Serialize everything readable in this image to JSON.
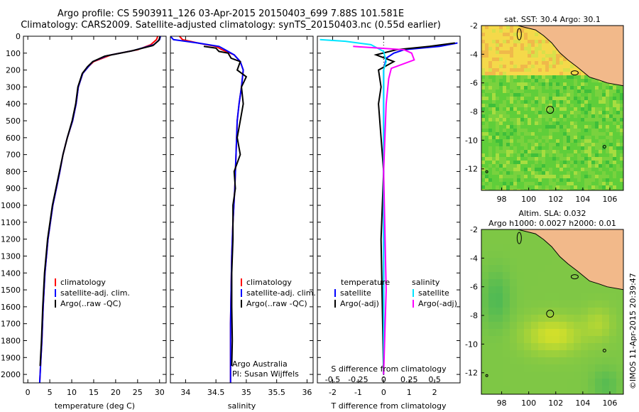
{
  "header": {
    "line1": "Argo profile: CS 5903911_126 03-Apr-2015 20150403_699 7.88S 101.581E",
    "line2": "Climatology: CARS2009. Satellite-adjusted climatology: synTS_20150403.nc (0.55d earlier)"
  },
  "colors": {
    "climatology": "#ff0000",
    "satellite": "#0000ff",
    "argo": "#000000",
    "satellite_s": "#00e5ff",
    "argo_s": "#ff00ff",
    "land": "#f2b98a"
  },
  "chart_data": [
    {
      "type": "line",
      "id": "temperature",
      "xlabel": "temperature (deg C)",
      "ylabel": "",
      "xlim": [
        -1,
        31.5
      ],
      "ylim": [
        2050,
        0
      ],
      "xticks": [
        0,
        5,
        10,
        15,
        20,
        25,
        30
      ],
      "yticks": [
        0,
        100,
        200,
        300,
        400,
        500,
        600,
        700,
        800,
        900,
        1000,
        1100,
        1200,
        1300,
        1400,
        1500,
        1600,
        1700,
        1800,
        1900,
        2000
      ],
      "legend": [
        "climatology",
        "satellite-adj. clim.",
        "Argo(..raw -QC)"
      ],
      "series": [
        {
          "name": "climatology",
          "color": "#ff0000",
          "x": [
            29.6,
            29.3,
            28.0,
            25.0,
            19.0,
            15.0,
            13.8,
            12.5,
            11.5,
            11.0,
            10.2,
            9.0,
            8.0,
            7.3,
            6.5,
            5.7,
            4.6,
            3.9,
            3.5,
            3.2,
            2.9,
            2.7
          ],
          "y": [
            0,
            20,
            50,
            80,
            110,
            150,
            180,
            220,
            300,
            400,
            500,
            600,
            700,
            800,
            900,
            1000,
            1200,
            1400,
            1600,
            1800,
            1950,
            2050
          ]
        },
        {
          "name": "satellite-adj. clim.",
          "color": "#0000ff",
          "x": [
            30.2,
            30.0,
            28.7,
            24.0,
            18.0,
            14.8,
            13.8,
            12.5,
            11.5,
            11.0,
            10.2,
            9.0,
            8.0,
            7.3,
            6.5,
            5.7,
            4.6,
            3.9,
            3.5,
            3.2,
            2.9,
            2.7
          ],
          "y": [
            0,
            20,
            50,
            85,
            115,
            150,
            180,
            220,
            300,
            400,
            500,
            600,
            700,
            800,
            900,
            1000,
            1200,
            1400,
            1600,
            1800,
            1950,
            2050
          ]
        },
        {
          "name": "Argo(..raw -QC)",
          "color": "#000000",
          "x": [
            30.1,
            29.8,
            28.5,
            23.5,
            17.5,
            14.8,
            13.6,
            12.4,
            11.4,
            10.9,
            10.1,
            9.0,
            8.0,
            7.2,
            6.4,
            5.6,
            4.5,
            3.8,
            3.4,
            3.1,
            2.8
          ],
          "y": [
            5,
            25,
            55,
            88,
            118,
            150,
            180,
            220,
            300,
            400,
            500,
            600,
            700,
            800,
            900,
            1000,
            1200,
            1400,
            1600,
            1800,
            1950
          ]
        }
      ]
    },
    {
      "type": "line",
      "id": "salinity",
      "xlabel": "salinity",
      "ylabel": "",
      "xlim": [
        33.75,
        36.1
      ],
      "ylim": [
        2050,
        0
      ],
      "xticks": [
        34,
        34.5,
        35,
        35.5,
        36
      ],
      "legend": [
        "climatology",
        "satellite-adj. clim.",
        "Argo(..raw -QC)"
      ],
      "annotation": [
        "Argo Australia",
        "PI: Susan Wijffels"
      ],
      "series": [
        {
          "name": "climatology",
          "color": "#ff0000",
          "x": [
            33.9,
            33.95,
            34.2,
            34.5,
            34.6,
            34.8,
            34.9,
            34.95,
            34.92,
            34.88,
            34.85,
            34.83,
            34.81,
            34.78,
            34.76,
            34.75,
            34.74,
            34.74,
            34.74,
            34.74
          ],
          "y": [
            0,
            20,
            40,
            60,
            80,
            110,
            150,
            200,
            300,
            400,
            500,
            700,
            900,
            1100,
            1300,
            1500,
            1700,
            1900,
            2000,
            2050
          ]
        },
        {
          "name": "satellite-adj. clim.",
          "color": "#0000ff",
          "x": [
            33.75,
            33.8,
            34.2,
            34.55,
            34.65,
            34.8,
            34.9,
            34.95,
            34.92,
            34.88,
            34.85,
            34.83,
            34.81,
            34.78,
            34.76,
            34.75,
            34.74,
            34.74,
            34.74,
            34.74
          ],
          "y": [
            0,
            20,
            40,
            60,
            80,
            110,
            150,
            200,
            300,
            400,
            500,
            700,
            900,
            1100,
            1300,
            1500,
            1700,
            1900,
            2000,
            2050
          ]
        },
        {
          "name": "Argo(..raw -QC)",
          "color": "#000000",
          "x": [
            34.3,
            34.5,
            34.55,
            34.7,
            34.75,
            34.9,
            34.85,
            35.0,
            34.92,
            34.95,
            34.9,
            34.85,
            34.9,
            34.8,
            34.82,
            34.78,
            34.78,
            34.76,
            34.76,
            34.77,
            34.76
          ],
          "y": [
            60,
            70,
            90,
            100,
            130,
            150,
            200,
            240,
            300,
            400,
            500,
            600,
            700,
            800,
            900,
            1000,
            1200,
            1400,
            1600,
            1800,
            1950
          ]
        }
      ]
    },
    {
      "type": "line",
      "id": "difference",
      "xlabel": "T difference from climatology",
      "xlabel_top": "S difference from climatology",
      "xlim": [
        -2.6,
        3.0
      ],
      "ylim": [
        2050,
        0
      ],
      "xticks": [
        -2,
        -1,
        0,
        1,
        2
      ],
      "xticks_top": [
        -0.5,
        -0.25,
        0,
        0.25,
        0.5
      ],
      "legend_groups": [
        {
          "title": "temperature",
          "items": [
            "satellite",
            "Argo(-adj)"
          ]
        },
        {
          "title": "salinity",
          "items": [
            "satellite",
            "Argo(-adj)"
          ]
        }
      ],
      "series": [
        {
          "name": "satellite",
          "group": "temperature",
          "color": "#0000ff",
          "x": [
            2.9,
            2.2,
            0.8,
            0.4,
            0.1,
            0.0,
            0.0,
            0.0,
            0.0,
            0.0,
            0.0
          ],
          "y": [
            40,
            60,
            80,
            100,
            130,
            200,
            400,
            800,
            1200,
            1600,
            2000
          ]
        },
        {
          "name": "Argo(-adj)",
          "group": "temperature",
          "color": "#000000",
          "x": [
            2.8,
            1.8,
            0.5,
            -0.3,
            0.4,
            -0.2,
            -0.1,
            -0.2,
            -0.1,
            0.0,
            -0.1,
            0.0
          ],
          "y": [
            40,
            60,
            80,
            110,
            150,
            200,
            300,
            400,
            600,
            800,
            1200,
            2000
          ]
        },
        {
          "name": "satellite",
          "group": "salinity",
          "color": "#00e5ff",
          "x": [
            -2.5,
            -1.5,
            -0.5,
            0.0,
            0.1,
            0.0,
            0.0,
            0.0,
            0.0
          ],
          "y": [
            20,
            30,
            50,
            90,
            150,
            200,
            500,
            1000,
            2000
          ]
        },
        {
          "name": "Argo(-adj)",
          "group": "salinity",
          "color": "#ff00ff",
          "x": [
            -1.2,
            0.8,
            1.1,
            1.2,
            0.3,
            0.2,
            0.1,
            0.0,
            0.1,
            0.0
          ],
          "y": [
            60,
            80,
            100,
            140,
            190,
            250,
            400,
            800,
            1500,
            2000
          ]
        }
      ]
    },
    {
      "type": "heatmap",
      "id": "sst-map",
      "title": "sat. SST: 30.4 Argo: 30.1",
      "xlim": [
        96.5,
        107
      ],
      "ylim": [
        -13.5,
        -2
      ],
      "xticks": [
        98,
        100,
        102,
        104,
        106
      ],
      "yticks": [
        -2,
        -4,
        -6,
        -8,
        -10,
        -12
      ],
      "float_position": {
        "x": 101.58,
        "y": -7.88
      }
    },
    {
      "type": "heatmap",
      "id": "sla-map",
      "title": [
        "Altim. SLA: 0.032",
        "Argo h1000: 0.0027 h2000: 0.01"
      ],
      "xlim": [
        96.5,
        107
      ],
      "ylim": [
        -13.5,
        -2
      ],
      "xticks": [
        98,
        100,
        102,
        104,
        106
      ],
      "yticks": [
        -2,
        -4,
        -6,
        -8,
        -10,
        -12
      ],
      "float_position": {
        "x": 101.58,
        "y": -7.88
      }
    }
  ],
  "stamp": "©IMOS 11-Apr-2015 20:39:47"
}
